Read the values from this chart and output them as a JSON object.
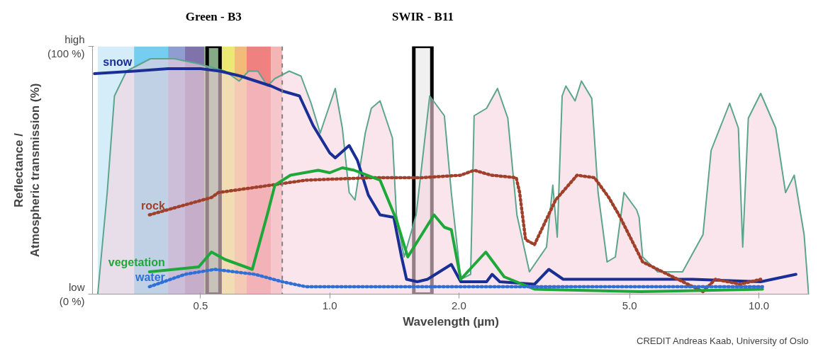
{
  "chart_data": {
    "type": "line",
    "xlabel": "Wavelength (µm)",
    "ylabel": "Reflectance /\nAtmospheric transmission (%)",
    "log": "x",
    "xlim": [
      0.28,
      13.1
    ],
    "xticks": [
      0.5,
      {
        "value": 1,
        "label": "1.0"
      },
      {
        "value": 2,
        "label": "2.0"
      },
      {
        "value": 5,
        "label": "5.0"
      },
      {
        "value": 10,
        "label": "10.0"
      }
    ],
    "ylim": [
      0,
      100
    ],
    "yticks": [
      {
        "value": 0,
        "label": "low\n(0 %)"
      },
      {
        "value": 100,
        "label": "high\n(100 %)"
      }
    ],
    "series": [
      {
        "type": "area",
        "color": "#f5d3de",
        "x": [
          0.288,
          0.303,
          0.315,
          0.336,
          0.382,
          0.435,
          0.494,
          0.57,
          0.615,
          0.647,
          0.68,
          0.716,
          0.745,
          0.805,
          0.857,
          0.905,
          0.95,
          1.03,
          1.07,
          1.11,
          1.145,
          1.21,
          1.25,
          1.31,
          1.4,
          1.43,
          1.49,
          1.59,
          1.71,
          1.85,
          1.92,
          2.02,
          2.13,
          2.17,
          2.32,
          2.46,
          2.6,
          2.73,
          2.92,
          3.2,
          3.31,
          3.39,
          3.48,
          3.55,
          3.73,
          3.86,
          4.08,
          4.22,
          4.43,
          4.63,
          4.85,
          5.19,
          5.26,
          5.36,
          5.81,
          6.64,
          7.41,
          7.74,
          8.55,
          8.96,
          9.17,
          9.45,
          10.1,
          10.95,
          11.54,
          12.09,
          12.75,
          13.06
        ],
        "values": [
          0,
          41,
          80,
          90,
          95,
          95,
          93,
          90,
          86,
          90,
          90,
          84,
          87,
          90,
          88,
          77,
          65,
          83,
          67,
          41,
          38,
          65,
          75,
          78,
          63,
          32,
          15,
          32,
          80,
          72,
          41,
          6,
          8,
          72,
          75,
          83,
          71,
          32,
          9,
          19,
          44,
          23,
          80,
          84,
          78,
          86,
          79,
          41,
          13,
          15,
          41,
          34,
          31,
          15,
          9,
          9,
          24,
          58,
          77,
          67,
          19,
          71,
          81,
          67,
          41,
          48,
          24,
          0
        ]
      },
      {
        "name": "snow",
        "color": "#1a2f96",
        "line_style": "solid",
        "x": [
          0.283,
          0.35,
          0.42,
          0.5,
          0.555,
          0.62,
          0.73,
          0.775,
          0.85,
          0.915,
          1.0,
          1.03,
          1.11,
          1.16,
          1.23,
          1.31,
          1.41,
          1.47,
          1.51,
          1.6,
          1.69,
          1.92,
          2.02,
          2.32,
          2.39,
          2.49,
          3.0,
          3.24,
          3.5,
          4.0,
          5.3,
          7.0,
          10.1,
          12.2
        ],
        "values": [
          89,
          90,
          91,
          91,
          90,
          88,
          84,
          82,
          80,
          68,
          57,
          55,
          60,
          54,
          40,
          32,
          31,
          15,
          6,
          5,
          6,
          12,
          5,
          5,
          8,
          5,
          4,
          10,
          6,
          6,
          6,
          6,
          5,
          8
        ]
      },
      {
        "name": "rock",
        "color": "#a0402a",
        "line_style": "dotted",
        "x": [
          0.38,
          0.53,
          0.55,
          0.73,
          0.88,
          1.25,
          1.64,
          2.02,
          2.17,
          2.38,
          2.72,
          2.77,
          2.86,
          3.0,
          3.36,
          3.77,
          4.14,
          4.47,
          4.72,
          5.36,
          6.13,
          7.41,
          7.92,
          9.05,
          10.1
        ],
        "values": [
          32,
          39,
          41,
          44,
          46,
          47,
          47,
          48,
          50,
          48,
          47,
          41,
          22,
          20,
          38,
          48,
          47,
          39,
          32,
          13,
          8,
          1,
          6,
          4,
          6
        ]
      },
      {
        "name": "vegetation",
        "color": "#1fa83a",
        "line_style": "solid",
        "x": [
          0.38,
          0.495,
          0.53,
          0.57,
          0.66,
          0.715,
          0.745,
          0.81,
          0.94,
          1.0,
          1.07,
          1.14,
          1.31,
          1.43,
          1.52,
          1.75,
          1.85,
          1.92,
          2.02,
          2.31,
          2.55,
          3.0,
          5.31,
          10.2
        ],
        "values": [
          9,
          11,
          17,
          14,
          10,
          32,
          44,
          48,
          50,
          49,
          51,
          50,
          46,
          30,
          15,
          32,
          27,
          26,
          6,
          17,
          7,
          2,
          1,
          2
        ]
      },
      {
        "name": "water",
        "color": "#2f6fd6",
        "line_style": "dotted",
        "x": [
          0.38,
          0.46,
          0.54,
          0.67,
          0.775,
          0.88,
          2.0,
          5.0,
          10.2
        ],
        "values": [
          3,
          8,
          10,
          8,
          5,
          3,
          3,
          3,
          3
        ]
      }
    ],
    "bands": [
      {
        "axis": "x",
        "from": 0.288,
        "to": 0.35,
        "color": "#cdeaf8"
      },
      {
        "axis": "x",
        "from": 0.35,
        "to": 0.42,
        "color": "#5cc6ef"
      },
      {
        "axis": "x",
        "from": 0.42,
        "to": 0.46,
        "color": "#7b8cc9"
      },
      {
        "axis": "x",
        "from": 0.46,
        "to": 0.51,
        "color": "#6a5a9e"
      },
      {
        "axis": "x",
        "from": 0.51,
        "to": 0.555,
        "color": "#7aa87a"
      },
      {
        "axis": "x",
        "from": 0.555,
        "to": 0.6,
        "color": "#e8e45a"
      },
      {
        "axis": "x",
        "from": 0.6,
        "to": 0.64,
        "color": "#f0b060"
      },
      {
        "axis": "x",
        "from": 0.64,
        "to": 0.73,
        "color": "#ec6b6b"
      },
      {
        "axis": "x",
        "from": 0.73,
        "to": 0.775,
        "color": "#f2a8a8"
      },
      {
        "axis": "x",
        "from": 0.518,
        "to": 0.555,
        "label": "Green - B3",
        "color": "#000000"
      },
      {
        "axis": "x",
        "from": 1.57,
        "to": 1.73,
        "label": "SWIR - B11",
        "color": "#000000"
      }
    ],
    "ref_lines": [
      {
        "axis": "x",
        "value": 0.775,
        "color": "#808080",
        "line_style": "dashed"
      }
    ],
    "annotations": [
      "CREDIT Andreas Kaab, University of Oslo"
    ]
  }
}
